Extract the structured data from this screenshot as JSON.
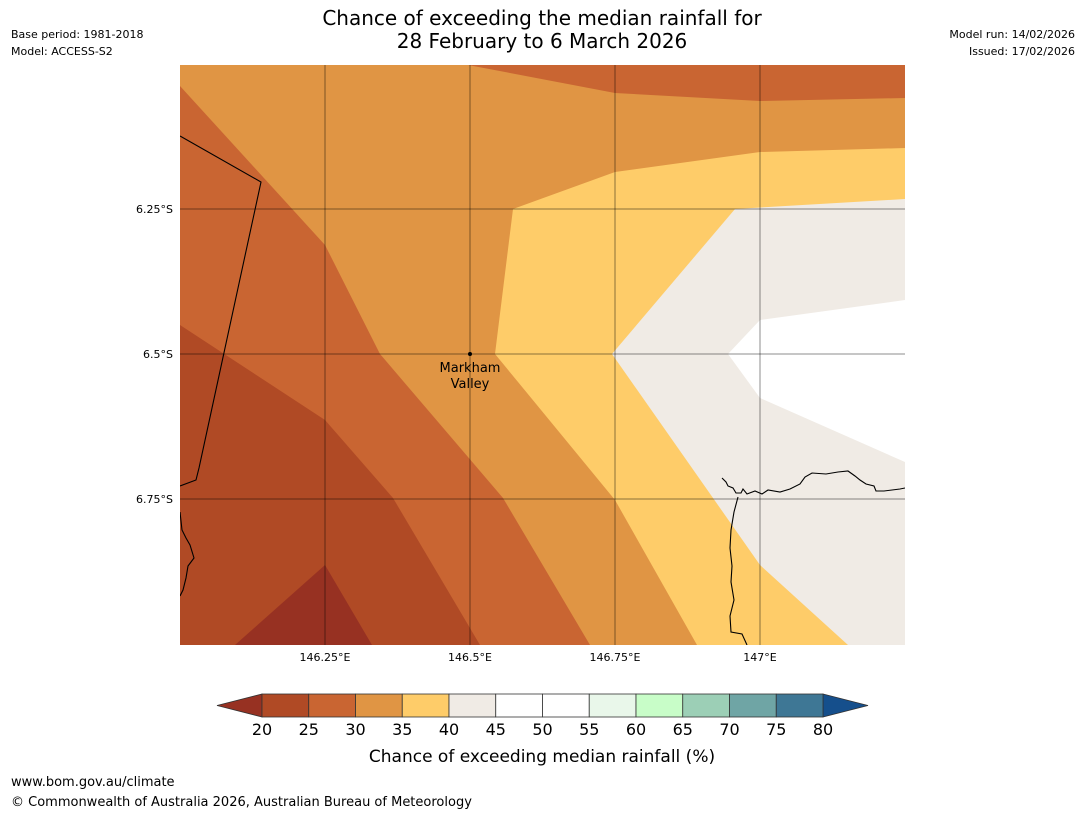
{
  "title": {
    "line1": "Chance of exceeding the median rainfall for",
    "line2": "28 February to 6 March 2026"
  },
  "meta_left": {
    "base_period": "Base period: 1981-2018",
    "model": "Model: ACCESS-S2"
  },
  "meta_right": {
    "model_run": "Model run: 14/02/2026",
    "issued": "Issued: 17/02/2026"
  },
  "map": {
    "location_label_line1": "Markham",
    "location_label_line2": "Valley",
    "lat_labels": [
      "6.25°S",
      "6.5°S",
      "6.75°S"
    ],
    "lon_labels": [
      "146.25°E",
      "146.5°E",
      "146.75°E",
      "147°E"
    ],
    "class_colors": {
      "below_20": "#973122",
      "c20_25": "#b04a25",
      "c25_30": "#c96532",
      "c30_35": "#e09544",
      "c35_40": "#fecc69",
      "c40_45": "#f0ebe5",
      "c45_55": "#ffffff"
    }
  },
  "colorbar": {
    "ticks": [
      "20",
      "25",
      "30",
      "35",
      "40",
      "45",
      "50",
      "55",
      "60",
      "65",
      "70",
      "75",
      "80"
    ],
    "label": "Chance of exceeding median rainfall (%)",
    "segment_colors": [
      "#b04a25",
      "#c96532",
      "#e09544",
      "#fecc69",
      "#f0ebe5",
      "#ffffff",
      "#ffffff",
      "#e9f7ea",
      "#c8fdc8",
      "#9ccfb6",
      "#6fa5a5",
      "#3e7795"
    ],
    "low_extend_color": "#973122",
    "high_extend_color": "#154f8c"
  },
  "footer": {
    "url": "www.bom.gov.au/climate",
    "copyright": "© Commonwealth of Australia 2026, Australian Bureau of Meteorology"
  }
}
